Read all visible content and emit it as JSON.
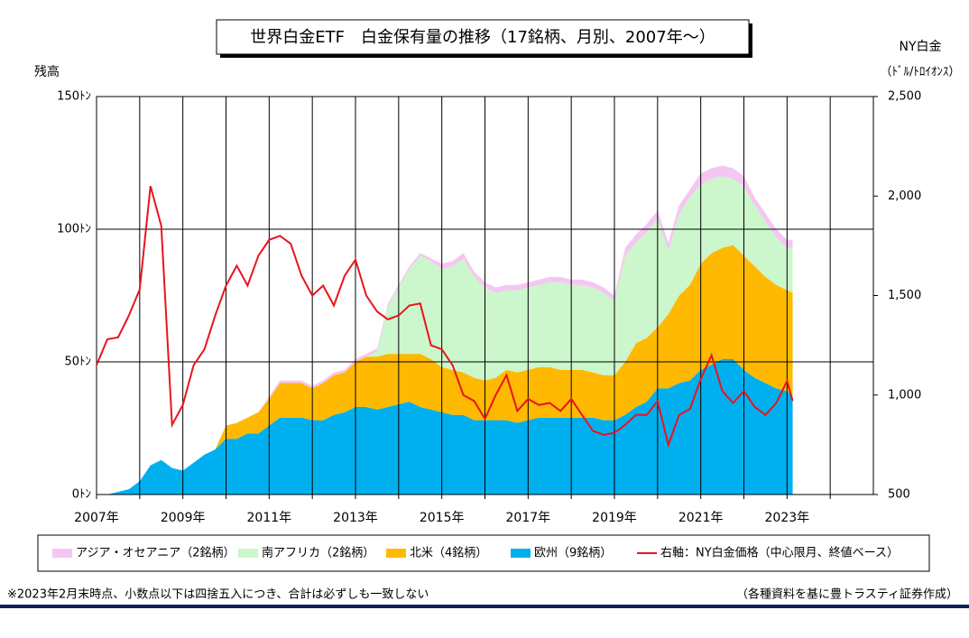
{
  "chart_data": {
    "type": "stacked_area_line",
    "title": "世界白金ETF　白金保有量の推移（17銘柄、月別、2007年～）",
    "y_label": "残高",
    "y2_label": "NY白金",
    "y2_unit": "（ﾄﾞﾙ/ﾄﾛｲｵﾝｽ）",
    "footnote": "※2023年2月末時点、小数点以下は四捨五入につき、合計は必ずしも一致しない",
    "source": "（各種資料を基に豊トラスティ証券作成）",
    "xlim": [
      2007,
      2025
    ],
    "xticks": [
      {
        "value": 2007,
        "label": "2007年"
      },
      {
        "value": 2009,
        "label": "2009年"
      },
      {
        "value": 2011,
        "label": "2011年"
      },
      {
        "value": 2013,
        "label": "2013年"
      },
      {
        "value": 2015,
        "label": "2015年"
      },
      {
        "value": 2017,
        "label": "2017年"
      },
      {
        "value": 2019,
        "label": "2019年"
      },
      {
        "value": 2021,
        "label": "2021年"
      },
      {
        "value": 2023,
        "label": "2023年"
      }
    ],
    "minor_xgrid": true,
    "ylim": [
      0,
      150
    ],
    "yticks": [
      {
        "value": 0,
        "label": "0ﾄﾝ"
      },
      {
        "value": 50,
        "label": "50ﾄﾝ"
      },
      {
        "value": 100,
        "label": "100ﾄﾝ"
      },
      {
        "value": 150,
        "label": "150ﾄﾝ"
      }
    ],
    "y2lim": [
      500,
      2500
    ],
    "y2ticks": [
      500,
      {
        "value": 1000,
        "label": "1,000"
      },
      {
        "value": 1500,
        "label": "1,500"
      },
      {
        "value": 2000,
        "label": "2,000"
      },
      {
        "value": 2500,
        "label": "2,500"
      }
    ],
    "grid": true,
    "x": [
      2007,
      2007.25,
      2007.5,
      2007.75,
      2008,
      2008.25,
      2008.5,
      2008.75,
      2009,
      2009.25,
      2009.5,
      2009.75,
      2010,
      2010.25,
      2010.5,
      2010.75,
      2011,
      2011.25,
      2011.5,
      2011.75,
      2012,
      2012.25,
      2012.5,
      2012.75,
      2013,
      2013.25,
      2013.5,
      2013.75,
      2014,
      2014.25,
      2014.5,
      2014.75,
      2015,
      2015.25,
      2015.5,
      2015.75,
      2016,
      2016.25,
      2016.5,
      2016.75,
      2017,
      2017.25,
      2017.5,
      2017.75,
      2018,
      2018.25,
      2018.5,
      2018.75,
      2019,
      2019.25,
      2019.5,
      2019.75,
      2020,
      2020.25,
      2020.5,
      2020.75,
      2021,
      2021.25,
      2021.5,
      2021.75,
      2022,
      2022.25,
      2022.5,
      2022.75,
      2023,
      2023.13
    ],
    "series": [
      {
        "name": "アジア・オセアニア（2銘柄）",
        "color": "#f6c6f2",
        "kind": "area",
        "values": [
          0,
          0,
          0,
          0,
          0,
          0,
          0,
          0,
          0,
          0,
          0,
          0,
          0,
          0,
          0,
          0,
          1,
          1,
          1,
          1,
          1,
          1,
          1,
          1,
          1,
          1,
          1,
          1,
          1,
          1,
          1,
          1,
          2,
          2,
          2,
          2,
          2,
          2,
          2,
          2,
          2,
          2,
          2,
          2,
          2,
          2,
          2,
          2,
          2,
          3,
          3,
          3,
          3,
          3,
          3,
          3,
          4,
          4,
          4,
          4,
          4,
          3,
          3,
          3,
          3,
          3
        ]
      },
      {
        "name": "南アフリカ（2銘柄）",
        "color": "#ccf6cc",
        "kind": "area",
        "values": [
          0,
          0,
          0,
          0,
          0,
          0,
          0,
          0,
          0,
          0,
          0,
          0,
          0,
          0,
          0,
          0,
          0,
          0,
          0,
          0,
          0,
          0,
          0,
          0,
          0,
          0,
          2,
          18,
          25,
          32,
          37,
          37,
          37,
          39,
          43,
          38,
          35,
          32,
          30,
          31,
          31,
          31,
          32,
          33,
          32,
          32,
          32,
          31,
          28,
          40,
          38,
          40,
          41,
          24,
          31,
          33,
          30,
          28,
          27,
          25,
          26,
          23,
          21,
          18,
          16,
          17
        ]
      },
      {
        "name": "北米（4銘柄）",
        "color": "#ffb900",
        "kind": "area",
        "values": [
          0,
          0,
          0,
          0,
          0,
          0,
          0,
          0,
          0,
          0,
          0,
          0,
          5,
          6,
          6,
          8,
          10,
          13,
          13,
          13,
          12,
          14,
          15,
          15,
          17,
          19,
          20,
          20,
          19,
          18,
          20,
          19,
          17,
          17,
          16,
          16,
          15,
          16,
          19,
          19,
          19,
          19,
          19,
          18,
          18,
          18,
          17,
          17,
          17,
          20,
          24,
          24,
          23,
          28,
          33,
          36,
          40,
          42,
          42,
          43,
          43,
          42,
          40,
          39,
          38,
          39
        ]
      },
      {
        "name": "欧州（9銘柄）",
        "color": "#00b0ee",
        "kind": "area",
        "values": [
          0,
          0,
          1,
          2,
          5,
          11,
          13,
          10,
          9,
          12,
          15,
          17,
          21,
          21,
          23,
          23,
          26,
          29,
          29,
          29,
          28,
          28,
          30,
          31,
          33,
          33,
          32,
          33,
          34,
          35,
          33,
          32,
          31,
          30,
          30,
          28,
          28,
          28,
          28,
          27,
          28,
          29,
          29,
          29,
          29,
          29,
          29,
          28,
          28,
          30,
          33,
          35,
          40,
          40,
          42,
          43,
          47,
          49,
          51,
          51,
          47,
          44,
          42,
          40,
          39,
          37
        ]
      },
      {
        "name": "右軸：NY白金価格（中心限月、終値ベース）",
        "color": "#e8141e",
        "kind": "line",
        "axis": "y2",
        "values": [
          1150,
          1280,
          1290,
          1400,
          1530,
          2050,
          1850,
          850,
          950,
          1150,
          1230,
          1400,
          1550,
          1650,
          1550,
          1700,
          1780,
          1800,
          1760,
          1600,
          1500,
          1550,
          1450,
          1600,
          1680,
          1500,
          1420,
          1380,
          1400,
          1450,
          1460,
          1250,
          1230,
          1150,
          1000,
          970,
          880,
          1000,
          1100,
          920,
          980,
          950,
          960,
          920,
          980,
          900,
          820,
          800,
          810,
          850,
          900,
          900,
          970,
          750,
          900,
          930,
          1080,
          1200,
          1020,
          960,
          1020,
          940,
          900,
          960,
          1070,
          970
        ]
      }
    ]
  }
}
